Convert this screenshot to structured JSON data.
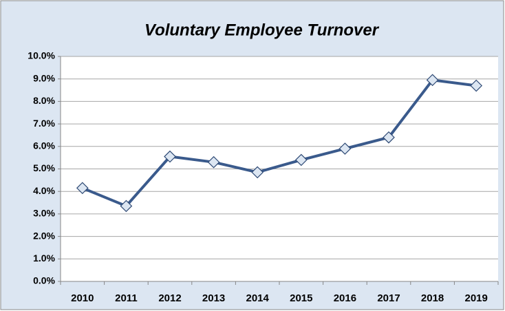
{
  "chart_data": {
    "type": "line",
    "title": "Voluntary Employee Turnover",
    "categories": [
      "2010",
      "2011",
      "2012",
      "2013",
      "2014",
      "2015",
      "2016",
      "2017",
      "2018",
      "2019"
    ],
    "series": [
      {
        "color": "#3a5a8c",
        "values": [
          4.15,
          3.35,
          5.55,
          5.3,
          4.85,
          5.4,
          5.9,
          6.4,
          8.95,
          8.7
        ]
      }
    ],
    "ylim": [
      0,
      10
    ],
    "yticks": [
      {
        "value": 0,
        "label": "0.0%"
      },
      {
        "value": 1,
        "label": "1.0%"
      },
      {
        "value": 2,
        "label": "2.0%"
      },
      {
        "value": 3,
        "label": "3.0%"
      },
      {
        "value": 4,
        "label": "4.0%"
      },
      {
        "value": 5,
        "label": "5.0%"
      },
      {
        "value": 6,
        "label": "6.0%"
      },
      {
        "value": 7,
        "label": "7.0%"
      },
      {
        "value": 8,
        "label": "8.0%"
      },
      {
        "value": 9,
        "label": "9.0%"
      },
      {
        "value": 10,
        "label": "10.0%"
      }
    ],
    "grid": true
  }
}
